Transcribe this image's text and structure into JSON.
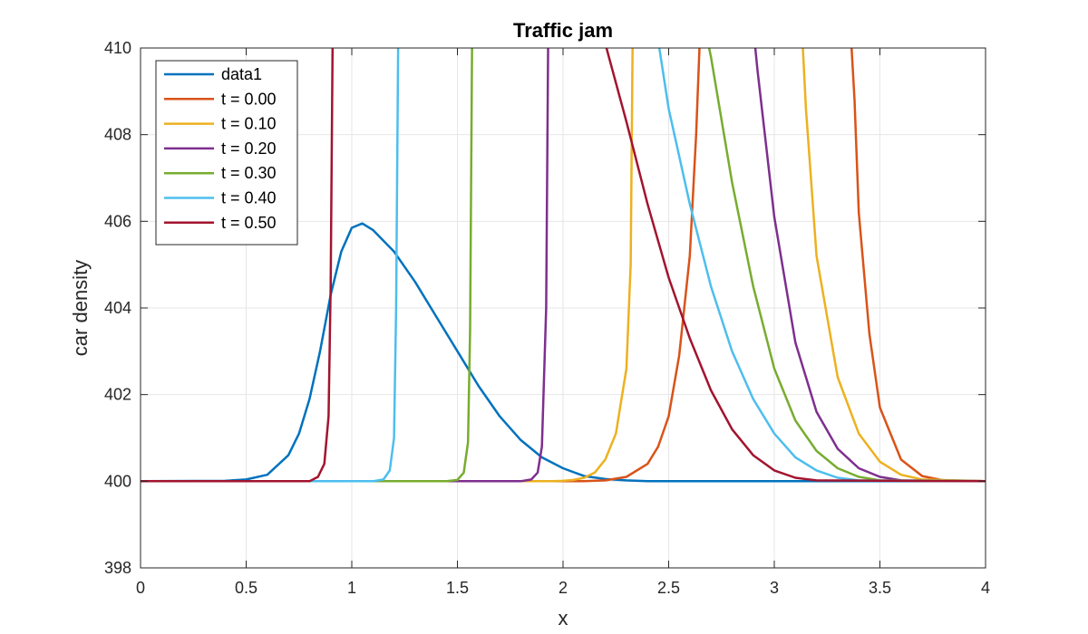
{
  "chart_data": {
    "type": "line",
    "title": "Traffic jam",
    "xlabel": "x",
    "ylabel": "car density",
    "xlim": [
      0,
      4
    ],
    "ylim": [
      398,
      410
    ],
    "xticks": [
      0,
      0.5,
      1,
      1.5,
      2,
      2.5,
      3,
      3.5,
      4
    ],
    "xtick_labels": [
      "0",
      "0.5",
      "1",
      "1.5",
      "2",
      "2.5",
      "3",
      "3.5",
      "4"
    ],
    "yticks": [
      398,
      400,
      402,
      404,
      406,
      408,
      410
    ],
    "ytick_labels": [
      "398",
      "400",
      "402",
      "404",
      "406",
      "408",
      "410"
    ],
    "grid": true,
    "legend_position": "top-left",
    "series": [
      {
        "name": "data1",
        "color": "#0072BD",
        "x": [
          0,
          0.4,
          0.5,
          0.6,
          0.7,
          0.75,
          0.8,
          0.85,
          0.9,
          0.95,
          1.0,
          1.05,
          1.1,
          1.2,
          1.3,
          1.4,
          1.5,
          1.6,
          1.7,
          1.8,
          1.9,
          2.0,
          2.1,
          2.2,
          2.3,
          2.4,
          4.0
        ],
        "y": [
          400,
          400.01,
          400.04,
          400.15,
          400.6,
          401.1,
          401.9,
          403.0,
          404.3,
          405.3,
          405.85,
          405.95,
          405.8,
          405.3,
          404.6,
          403.8,
          403.0,
          402.2,
          401.5,
          400.95,
          400.55,
          400.3,
          400.12,
          400.05,
          400.02,
          400,
          400
        ]
      },
      {
        "name": "t = 0.00",
        "color": "#D95319",
        "x": [
          0,
          2.1,
          2.2,
          2.3,
          2.4,
          2.45,
          2.5,
          2.55,
          2.6,
          2.63,
          2.65,
          2.8,
          2.9,
          3.0,
          3.1,
          3.2,
          3.3,
          3.36,
          3.38,
          3.4,
          3.45,
          3.5,
          3.6,
          3.7,
          3.8,
          4.0
        ],
        "y": [
          400,
          400,
          400.02,
          400.1,
          400.4,
          400.8,
          401.5,
          402.9,
          405.2,
          408.0,
          410.5,
          410.5,
          410.5,
          410.5,
          410.5,
          410.5,
          410.5,
          410.5,
          408.8,
          406.2,
          403.4,
          401.7,
          400.5,
          400.12,
          400.02,
          400
        ]
      },
      {
        "name": "t = 0.10",
        "color": "#EDB120",
        "x": [
          0,
          1.95,
          2.0,
          2.05,
          2.1,
          2.15,
          2.2,
          2.25,
          2.3,
          2.32,
          2.33,
          2.6,
          2.9,
          3.13,
          3.15,
          3.2,
          3.3,
          3.4,
          3.5,
          3.6,
          3.7,
          4.0
        ],
        "y": [
          400,
          400,
          400.01,
          400.03,
          400.08,
          400.2,
          400.5,
          401.1,
          402.6,
          405.0,
          410.5,
          410.5,
          410.5,
          410.5,
          408.6,
          405.2,
          402.4,
          401.1,
          400.45,
          400.15,
          400.04,
          400
        ]
      },
      {
        "name": "t = 0.20",
        "color": "#7E2F8E",
        "x": [
          0,
          1.8,
          1.85,
          1.88,
          1.9,
          1.92,
          1.93,
          2.3,
          2.6,
          2.9,
          2.92,
          3.0,
          3.1,
          3.2,
          3.3,
          3.4,
          3.5,
          3.6,
          4.0
        ],
        "y": [
          400,
          400,
          400.04,
          400.2,
          400.8,
          404.0,
          410.5,
          410.5,
          410.5,
          410.5,
          409.5,
          406.1,
          403.2,
          401.6,
          400.75,
          400.3,
          400.1,
          400.02,
          400
        ]
      },
      {
        "name": "t = 0.30",
        "color": "#77AC30",
        "x": [
          0,
          1.45,
          1.5,
          1.53,
          1.55,
          1.56,
          1.57,
          2.0,
          2.67,
          2.7,
          2.8,
          2.9,
          3.0,
          3.1,
          3.2,
          3.3,
          3.4,
          3.5,
          4.0
        ],
        "y": [
          400,
          400,
          400.03,
          400.2,
          400.9,
          403.5,
          410.5,
          410.5,
          410.5,
          409.8,
          406.9,
          404.5,
          402.6,
          401.4,
          400.7,
          400.3,
          400.1,
          400.02,
          400
        ]
      },
      {
        "name": "t = 0.40",
        "color": "#4DBEEE",
        "x": [
          0,
          1.1,
          1.15,
          1.18,
          1.2,
          1.21,
          1.22,
          1.8,
          2.44,
          2.5,
          2.6,
          2.7,
          2.8,
          2.9,
          3.0,
          3.1,
          3.2,
          3.3,
          3.4,
          4.0
        ],
        "y": [
          400,
          400,
          400.04,
          400.25,
          401.0,
          404.0,
          410.5,
          410.5,
          410.5,
          408.6,
          406.4,
          404.5,
          403.0,
          401.9,
          401.1,
          400.55,
          400.25,
          400.08,
          400.02,
          400
        ]
      },
      {
        "name": "t = 0.50",
        "color": "#A2142F",
        "x": [
          0,
          0.8,
          0.84,
          0.87,
          0.89,
          0.9,
          0.91,
          1.5,
          2.18,
          2.2,
          2.3,
          2.4,
          2.5,
          2.6,
          2.7,
          2.8,
          2.9,
          3.0,
          3.1,
          3.2,
          4.0
        ],
        "y": [
          400,
          400,
          400.1,
          400.4,
          401.5,
          404.5,
          410.5,
          410.5,
          410.5,
          410.1,
          408.3,
          406.4,
          404.7,
          403.3,
          402.1,
          401.2,
          400.6,
          400.25,
          400.08,
          400.02,
          400
        ]
      }
    ]
  }
}
